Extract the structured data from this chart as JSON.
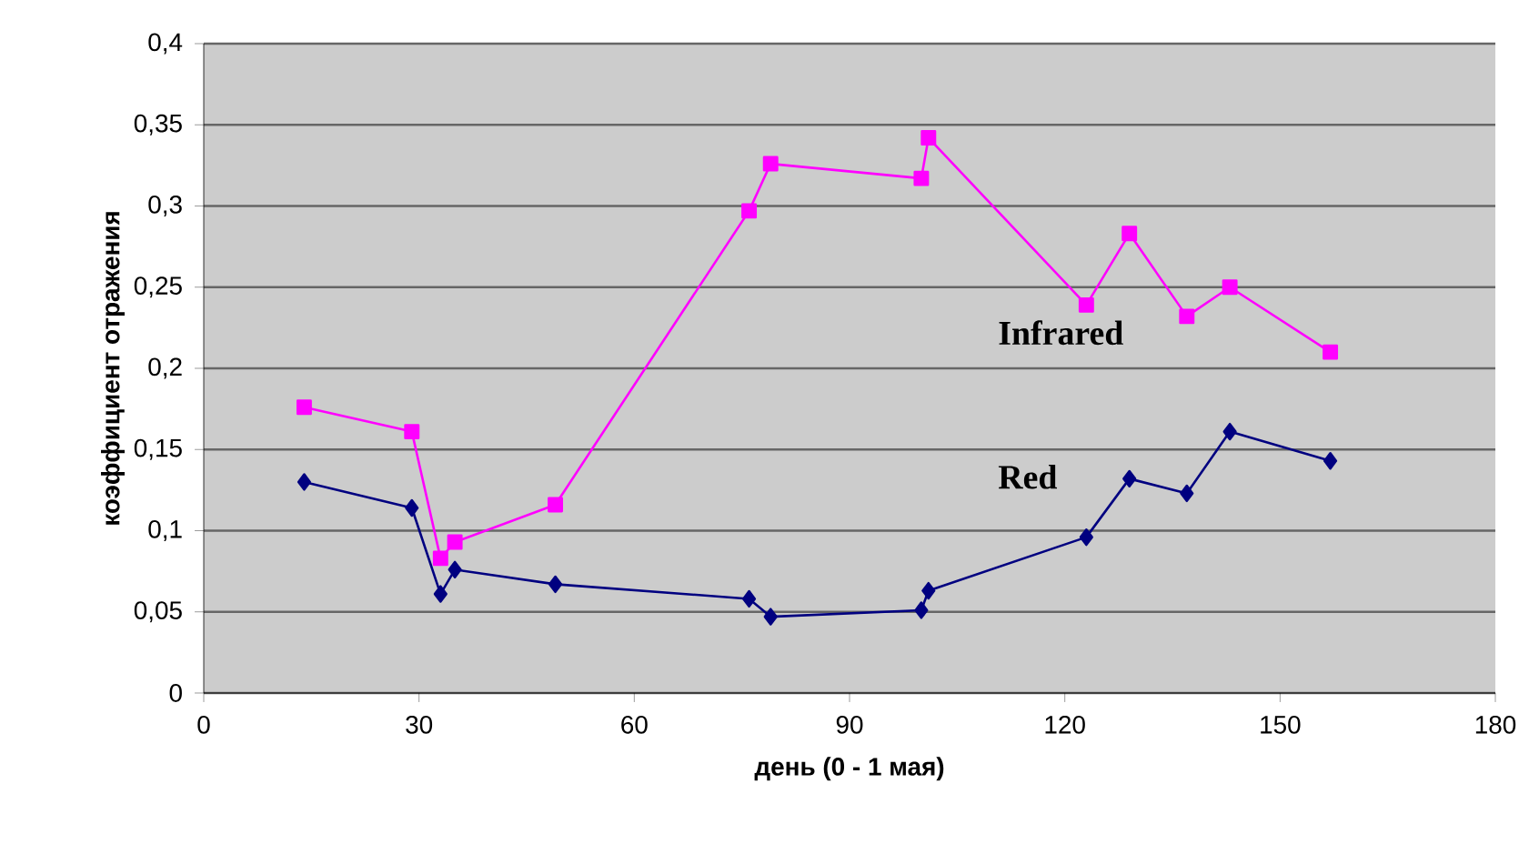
{
  "chart_data": {
    "type": "line",
    "xlabel": "день (0 - 1 мая)",
    "ylabel": "коэффициент отражения",
    "xlim": [
      0,
      180
    ],
    "xticks": [
      0,
      30,
      60,
      90,
      120,
      150,
      180
    ],
    "ylim": [
      0,
      0.4
    ],
    "yticks": [
      {
        "value": 0,
        "label": "0"
      },
      {
        "value": 0.05,
        "label": "0,05"
      },
      {
        "value": 0.1,
        "label": "0,1"
      },
      {
        "value": 0.15,
        "label": "0,15"
      },
      {
        "value": 0.2,
        "label": "0,2"
      },
      {
        "value": 0.25,
        "label": "0,25"
      },
      {
        "value": 0.3,
        "label": "0,3"
      },
      {
        "value": 0.35,
        "label": "0,35"
      },
      {
        "value": 0.4,
        "label": "0,4"
      }
    ],
    "grid": "y",
    "legend": false,
    "series": [
      {
        "name": "Infrared",
        "color": "#ff00ff",
        "marker": "square",
        "x": [
          14,
          29,
          33,
          35,
          49,
          76,
          79,
          100,
          101,
          123,
          129,
          137,
          143,
          157
        ],
        "values": [
          0.176,
          0.161,
          0.083,
          0.093,
          0.116,
          0.297,
          0.326,
          0.317,
          0.342,
          0.239,
          0.283,
          0.232,
          0.25,
          0.21
        ]
      },
      {
        "name": "Red",
        "color": "#000080",
        "marker": "diamond",
        "x": [
          14,
          29,
          33,
          35,
          49,
          76,
          79,
          100,
          101,
          123,
          129,
          137,
          143,
          157
        ],
        "values": [
          0.13,
          0.114,
          0.061,
          0.076,
          0.067,
          0.058,
          0.047,
          0.051,
          0.063,
          0.096,
          0.132,
          0.123,
          0.161,
          0.143
        ]
      }
    ]
  }
}
